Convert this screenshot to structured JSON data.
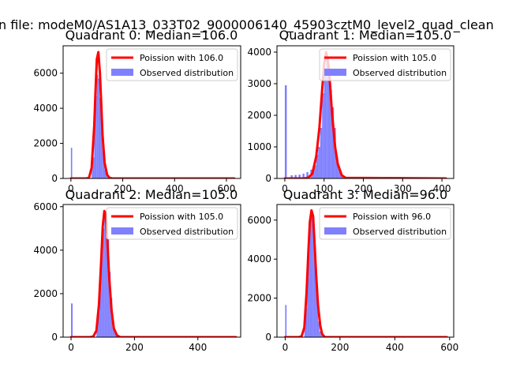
{
  "suptitle": "n file: modeM0/AS1A13_033T02_9000006140_45903cztM0_level2_quad_clean",
  "colors": {
    "poisson": "#ff0000",
    "observed": "#8080ff",
    "axes": "#000000"
  },
  "chart_data": [
    {
      "type": "bar",
      "title": "Quadrant 0: Median=106.0",
      "legend": [
        "Poission with 106.0",
        "Observed distribution"
      ],
      "legend_placement": "upper right",
      "xlim": [
        -30,
        655
      ],
      "ylim": [
        0,
        7560
      ],
      "xticks": [
        0,
        200,
        400,
        600
      ],
      "yticks": [
        0,
        2000,
        4000,
        6000
      ],
      "poisson": {
        "name": "Poission with 106.0",
        "x": [
          0,
          60,
          70,
          80,
          90,
          95,
          100,
          106,
          112,
          117,
          122,
          130,
          140,
          150,
          160,
          630
        ],
        "y": [
          0,
          0,
          50,
          600,
          3000,
          5000,
          6800,
          7200,
          6000,
          4300,
          2500,
          900,
          200,
          30,
          0,
          0
        ]
      },
      "observed": {
        "name": "Observed distribution",
        "bin_width": 5,
        "x": [
          0,
          80,
          85,
          90,
          95,
          100,
          105,
          110,
          115,
          120,
          125,
          130,
          135,
          140
        ],
        "y": [
          1750,
          700,
          1200,
          3100,
          4700,
          5900,
          5700,
          4600,
          3700,
          2100,
          1100,
          500,
          250,
          80
        ]
      }
    },
    {
      "type": "bar",
      "title": "Quadrant 1: Median=105.0",
      "legend": [
        "Poission with 105.0",
        "Observed distribution"
      ],
      "legend_placement": "upper right",
      "xlim": [
        -20,
        430
      ],
      "ylim": [
        0,
        4200
      ],
      "xticks": [
        0,
        100,
        200,
        300,
        400
      ],
      "yticks": [
        0,
        1000,
        2000,
        3000,
        4000
      ],
      "poisson": {
        "name": "Poission with 105.0",
        "x": [
          0,
          50,
          60,
          70,
          80,
          88,
          95,
          100,
          105,
          110,
          115,
          120,
          128,
          135,
          145,
          155,
          410
        ],
        "y": [
          0,
          0,
          30,
          150,
          700,
          1600,
          2800,
          3600,
          4000,
          3700,
          3000,
          2100,
          1000,
          450,
          100,
          20,
          0
        ]
      },
      "observed": {
        "name": "Observed distribution",
        "bin_width": 5,
        "x": [
          0,
          15,
          25,
          35,
          45,
          55,
          65,
          70,
          75,
          80,
          85,
          90,
          95,
          100,
          105,
          110,
          115,
          120,
          125,
          130,
          135,
          140,
          145
        ],
        "y": [
          2950,
          100,
          110,
          120,
          150,
          200,
          280,
          300,
          420,
          750,
          1000,
          1600,
          2700,
          3500,
          3950,
          3600,
          2800,
          2250,
          1600,
          700,
          400,
          180,
          60
        ]
      }
    },
    {
      "type": "bar",
      "title": "Quadrant 2: Median=105.0",
      "legend": [
        "Poission with 105.0",
        "Observed distribution"
      ],
      "legend_placement": "upper right",
      "xlim": [
        -25,
        535
      ],
      "ylim": [
        0,
        6100
      ],
      "xticks": [
        0,
        200,
        400
      ],
      "yticks": [
        0,
        2000,
        4000,
        6000
      ],
      "poisson": {
        "name": "Poission with 105.0",
        "x": [
          0,
          60,
          70,
          80,
          88,
          95,
          100,
          105,
          110,
          115,
          120,
          128,
          135,
          145,
          155,
          520
        ],
        "y": [
          0,
          0,
          30,
          300,
          1500,
          3500,
          5100,
          5800,
          5600,
          4300,
          2800,
          1200,
          400,
          80,
          0,
          0
        ]
      },
      "observed": {
        "name": "Observed distribution",
        "bin_width": 5,
        "x": [
          0,
          80,
          85,
          90,
          95,
          100,
          105,
          110,
          115,
          120,
          125,
          130,
          135,
          140
        ],
        "y": [
          1550,
          400,
          1100,
          2300,
          3900,
          5000,
          5800,
          5400,
          4500,
          3000,
          1800,
          800,
          300,
          100
        ]
      }
    },
    {
      "type": "bar",
      "title": "Quadrant 3: Median=96.0",
      "legend": [
        "Poission with 96.0",
        "Observed distribution"
      ],
      "legend_placement": "upper right",
      "xlim": [
        -30,
        615
      ],
      "ylim": [
        0,
        6800
      ],
      "xticks": [
        0,
        200,
        400,
        600
      ],
      "yticks": [
        0,
        2000,
        4000,
        6000
      ],
      "poisson": {
        "name": "Poission with 96.0",
        "x": [
          0,
          50,
          60,
          70,
          78,
          85,
          90,
          96,
          102,
          108,
          113,
          120,
          128,
          135,
          145,
          590
        ],
        "y": [
          0,
          0,
          50,
          500,
          2300,
          4500,
          5900,
          6500,
          6200,
          4600,
          3200,
          1600,
          600,
          150,
          0,
          0
        ]
      },
      "observed": {
        "name": "Observed distribution",
        "bin_width": 5,
        "x": [
          0,
          70,
          75,
          80,
          85,
          90,
          95,
          100,
          105,
          110,
          115,
          120,
          125,
          130
        ],
        "y": [
          1650,
          500,
          1500,
          3000,
          4800,
          6000,
          6300,
          5900,
          4700,
          3200,
          1700,
          800,
          300,
          100
        ]
      }
    }
  ]
}
